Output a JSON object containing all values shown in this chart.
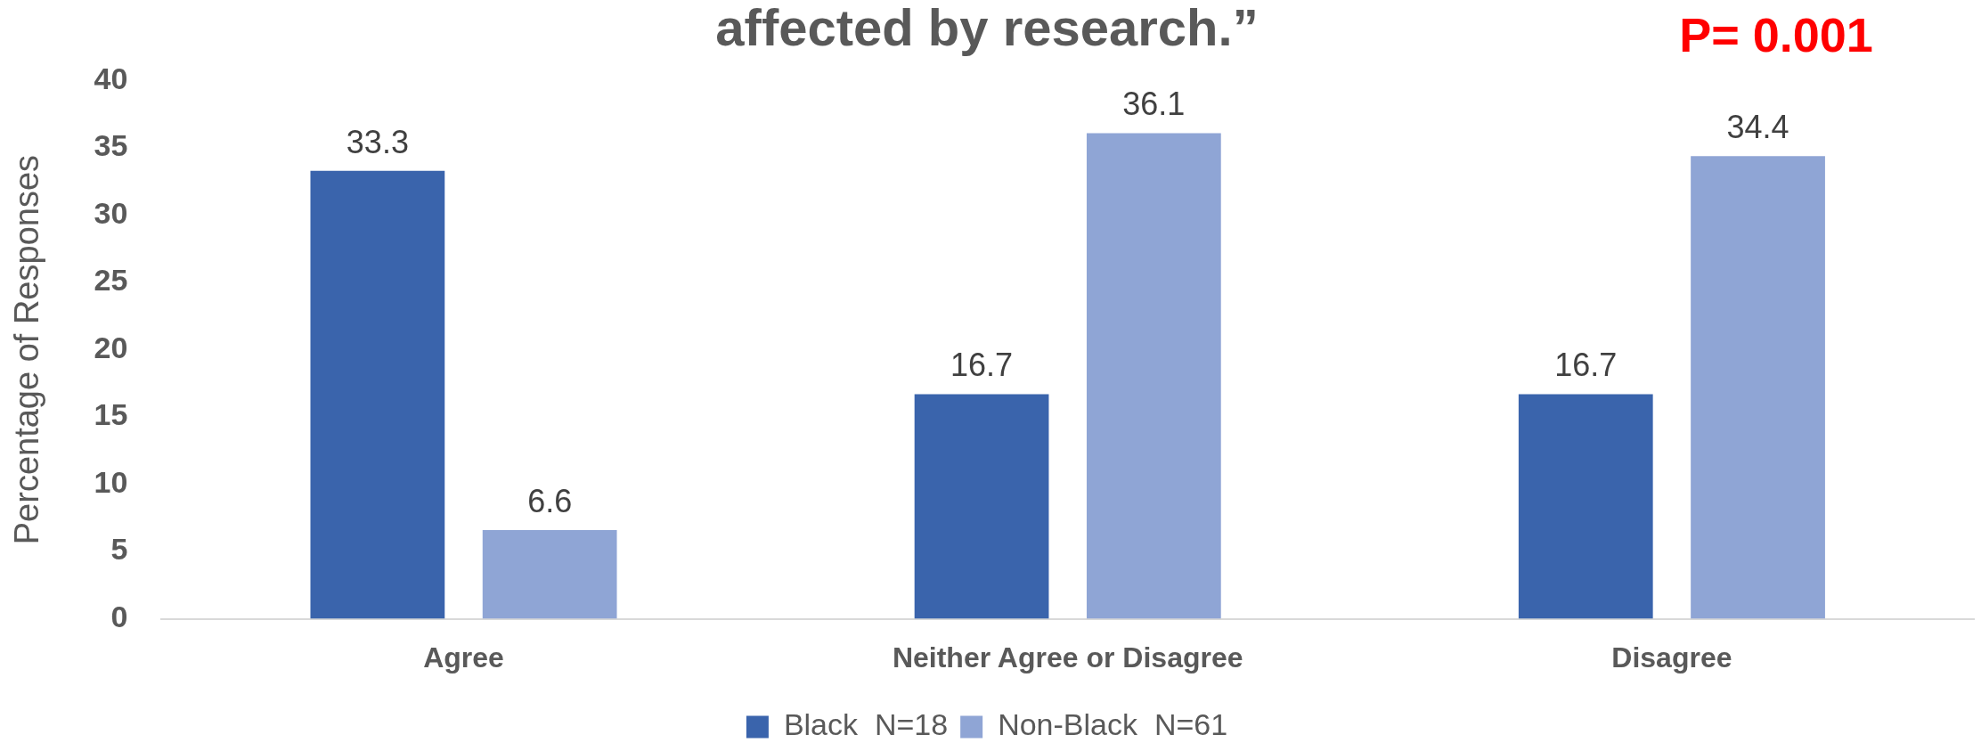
{
  "chart_data": {
    "type": "bar",
    "title": "affected by research.”",
    "ylabel": "Percentage of Responses",
    "categories": [
      "Agree",
      "Neither Agree or Disagree",
      "Disagree"
    ],
    "series": [
      {
        "name": "Black  N=18",
        "color": "#3a64ac",
        "values": [
          33.3,
          16.7,
          16.7
        ]
      },
      {
        "name": "Non-Black  N=61",
        "color": "#8fa5d5",
        "values": [
          6.6,
          36.1,
          34.4
        ]
      }
    ],
    "ylim": [
      0,
      40
    ],
    "yticks": [
      0,
      5,
      10,
      15,
      20,
      25,
      30,
      35,
      40
    ],
    "grid": false,
    "legend": "bottom",
    "data_labels": true,
    "annotations": [
      "P= 0.001"
    ]
  }
}
